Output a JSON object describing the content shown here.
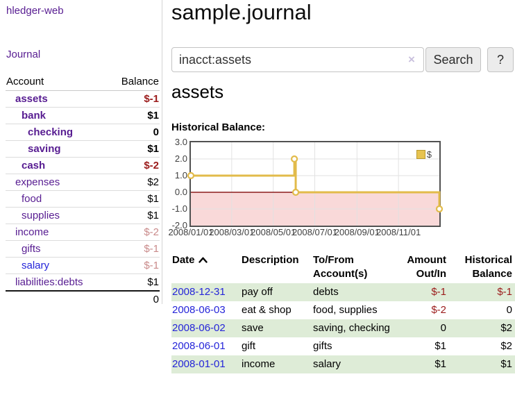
{
  "app": {
    "title": "hledger-web",
    "nav_journal": "Journal"
  },
  "sidebar": {
    "columns": [
      "Account",
      "Balance"
    ],
    "rows": [
      {
        "account": "assets",
        "balance": "$-1",
        "indent": 1,
        "bold": true,
        "neg": "strong"
      },
      {
        "account": "bank",
        "balance": "$1",
        "indent": 2,
        "bold": true,
        "neg": ""
      },
      {
        "account": "checking",
        "balance": "0",
        "indent": 3,
        "bold": true,
        "neg": ""
      },
      {
        "account": "saving",
        "balance": "$1",
        "indent": 3,
        "bold": true,
        "neg": ""
      },
      {
        "account": "cash",
        "balance": "$-2",
        "indent": 2,
        "bold": true,
        "neg": "strong"
      },
      {
        "account": "expenses",
        "balance": "$2",
        "indent": 1,
        "bold": false,
        "neg": ""
      },
      {
        "account": "food",
        "balance": "$1",
        "indent": 2,
        "bold": false,
        "neg": ""
      },
      {
        "account": "supplies",
        "balance": "$1",
        "indent": 2,
        "bold": false,
        "neg": ""
      },
      {
        "account": "income",
        "balance": "$-2",
        "indent": 1,
        "bold": false,
        "neg": "soft"
      },
      {
        "account": "gifts",
        "balance": "$-1",
        "indent": 2,
        "bold": false,
        "neg": "soft"
      },
      {
        "account": "salary",
        "balance": "$-1",
        "indent": 2,
        "bold": false,
        "neg": "soft",
        "blue": true
      },
      {
        "account": "liabilities:debts",
        "balance": "$1",
        "indent": 1,
        "bold": false,
        "neg": ""
      }
    ],
    "total": "0"
  },
  "header": {
    "title": "sample.journal"
  },
  "search": {
    "value": "inacct:assets",
    "clear_icon": "×",
    "button": "Search",
    "help_button": "?"
  },
  "account_page": {
    "heading": "assets",
    "chart_label": "Historical Balance:"
  },
  "chart_data": {
    "type": "line",
    "title": "Historical Balance",
    "step": true,
    "series": [
      {
        "name": "$",
        "color": "#e2bb4a",
        "points": [
          [
            "2008-01-01",
            1
          ],
          [
            "2008-06-01",
            2
          ],
          [
            "2008-06-03",
            0
          ],
          [
            "2008-12-31",
            -1
          ]
        ]
      }
    ],
    "x_ticks": [
      "2008/01/01",
      "2008/03/01",
      "2008/05/01",
      "2008/07/01",
      "2008/09/01",
      "2008/11/01"
    ],
    "y_ticks": [
      "3.0",
      "2.0",
      "1.0",
      "0.0",
      "-1.0",
      "-2.0"
    ],
    "ylim": [
      -2,
      3
    ],
    "grid": true,
    "legend": "$",
    "legend_position": "top-right",
    "negative_region_color": "#f9d9d9",
    "zero_line_color": "#8b1c1c",
    "grid_color": "#e2e2e2",
    "marker_fill": "#ffffff"
  },
  "register": {
    "columns": [
      "Date",
      "Description",
      "To/From Account(s)",
      "Amount Out/In",
      "Historical Balance"
    ],
    "rows": [
      {
        "date": "2008-12-31",
        "description": "pay off",
        "accounts": "debts",
        "amount": "$-1",
        "balance": "$-1",
        "amount_neg": true,
        "balance_neg": true,
        "stripe": true
      },
      {
        "date": "2008-06-03",
        "description": "eat & shop",
        "accounts": "food, supplies",
        "amount": "$-2",
        "balance": "0",
        "amount_neg": true,
        "balance_neg": false,
        "stripe": false
      },
      {
        "date": "2008-06-02",
        "description": "save",
        "accounts": "saving, checking",
        "amount": "0",
        "balance": "$2",
        "amount_neg": false,
        "balance_neg": false,
        "stripe": true
      },
      {
        "date": "2008-06-01",
        "description": "gift",
        "accounts": "gifts",
        "amount": "$1",
        "balance": "$2",
        "amount_neg": false,
        "balance_neg": false,
        "stripe": false
      },
      {
        "date": "2008-01-01",
        "description": "income",
        "accounts": "salary",
        "amount": "$1",
        "balance": "$1",
        "amount_neg": false,
        "balance_neg": false,
        "stripe": true
      }
    ]
  }
}
